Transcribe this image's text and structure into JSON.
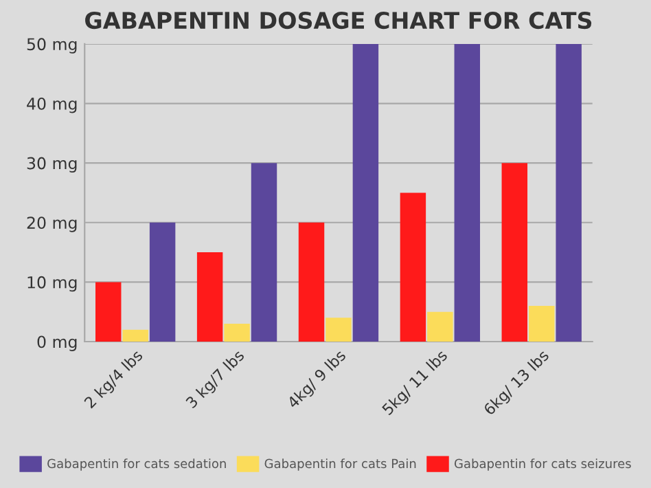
{
  "chart_data": {
    "type": "bar",
    "title": "GABAPENTIN DOSAGE CHART FOR CATS",
    "categories": [
      "2 kg/4 lbs",
      "3 kg/7 lbs",
      "4kg/ 9 lbs",
      "5kg/ 11 lbs",
      "6kg/ 13 lbs"
    ],
    "series": [
      {
        "name": "Gabapentin for cats seizures",
        "color": "#ff1a1a",
        "values": [
          10,
          15,
          20,
          25,
          30
        ]
      },
      {
        "name": "Gabapentin for cats Pain",
        "color": "#fbdc5a",
        "values": [
          2,
          3,
          4,
          5,
          6
        ]
      },
      {
        "name": "Gabapentin for cats sedation",
        "color": "#5b479c",
        "values": [
          20,
          30,
          50,
          50,
          50
        ]
      }
    ],
    "ylim": [
      0,
      50
    ],
    "yticks": [
      {
        "value": 0,
        "label": "0 mg"
      },
      {
        "value": 10,
        "label": "10 mg"
      },
      {
        "value": 20,
        "label": "20 mg"
      },
      {
        "value": 30,
        "label": "30 mg"
      },
      {
        "value": 40,
        "label": "40 mg"
      },
      {
        "value": 50,
        "label": "50 mg"
      }
    ],
    "grid": "y",
    "legend": "bottom"
  }
}
